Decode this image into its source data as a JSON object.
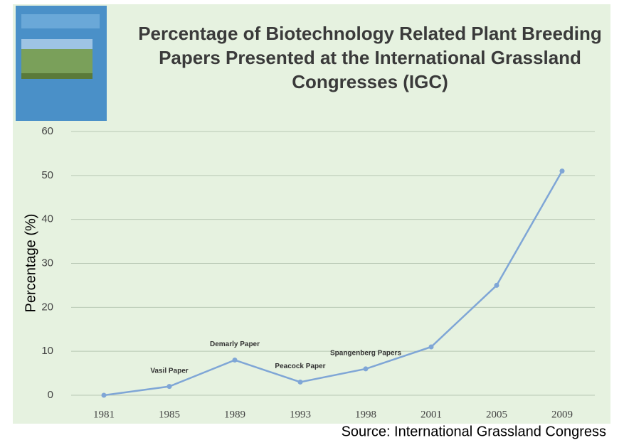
{
  "chart_data": {
    "type": "line",
    "title": "Percentage of Biotechnology Related Plant Breeding Papers Presented at the International Grassland Congresses (IGC)",
    "y_label": "Percentage (%)",
    "source": "Source: International Grassland Congress",
    "categories": [
      "1981",
      "1985",
      "1989",
      "1993",
      "1998",
      "2001",
      "2005",
      "2009"
    ],
    "values": [
      0,
      2,
      8,
      3,
      6,
      11,
      25,
      51
    ],
    "color": "#7fa6d6",
    "ylim": [
      0,
      60
    ],
    "yticks": [
      0,
      10,
      20,
      30,
      40,
      50,
      60
    ],
    "grid": true,
    "annotations": [
      {
        "text": "Vasil Paper",
        "category": "1985"
      },
      {
        "text": "Demarly Paper",
        "category": "1989"
      },
      {
        "text": "Peacock Paper",
        "category": "1993"
      },
      {
        "text": "Spangenberg Papers",
        "category": "1998"
      }
    ]
  }
}
